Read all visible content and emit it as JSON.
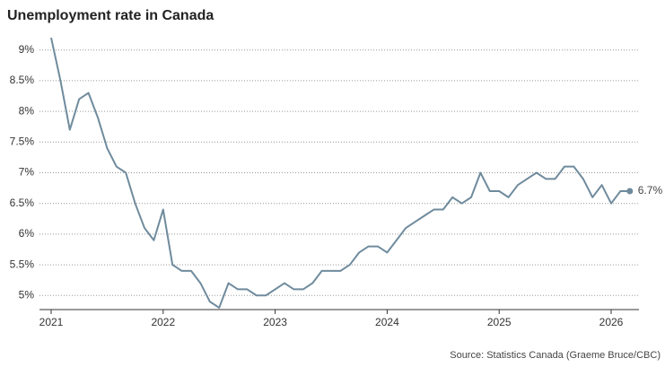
{
  "chart_data": {
    "type": "line",
    "title": "Unemployment rate in Canada",
    "source": "Source: Statistics Canada (Graeme Bruce/CBC)",
    "categories": [
      "2021",
      null,
      null,
      null,
      null,
      null,
      null,
      null,
      null,
      null,
      null,
      null,
      "2022",
      null,
      null,
      null,
      null,
      null,
      null,
      null,
      null,
      null,
      null,
      null,
      "2023",
      null,
      null,
      null,
      null,
      null,
      null,
      null,
      null,
      null,
      null,
      null,
      "2024",
      null,
      null,
      null,
      null,
      null,
      null,
      null,
      null,
      null,
      null,
      null,
      "2025",
      null,
      null,
      null,
      null,
      null,
      null,
      null,
      null,
      null,
      null,
      null,
      "2026",
      null,
      null
    ],
    "series": [
      {
        "name": "Unemployment rate",
        "color": "#6f8b9d",
        "values": [
          9.2,
          8.5,
          7.7,
          8.2,
          8.3,
          7.9,
          7.4,
          7.1,
          7.0,
          6.5,
          6.1,
          5.9,
          6.4,
          5.5,
          5.4,
          5.4,
          5.2,
          4.9,
          4.8,
          5.2,
          5.1,
          5.1,
          5.0,
          5.0,
          5.1,
          5.2,
          5.1,
          5.1,
          5.2,
          5.4,
          5.4,
          5.4,
          5.5,
          5.7,
          5.8,
          5.8,
          5.7,
          5.9,
          6.1,
          6.2,
          6.3,
          6.4,
          6.4,
          6.6,
          6.5,
          6.6,
          7.0,
          6.7,
          6.7,
          6.6,
          6.8,
          6.9,
          7.0,
          6.9,
          6.9,
          7.1,
          7.1,
          6.9,
          6.6,
          6.8,
          6.5,
          6.7,
          6.7
        ],
        "value_labels": [
          null,
          null,
          null,
          null,
          null,
          null,
          null,
          null,
          null,
          null,
          null,
          null,
          null,
          null,
          null,
          null,
          null,
          null,
          null,
          null,
          null,
          null,
          null,
          null,
          null,
          null,
          null,
          null,
          null,
          null,
          null,
          null,
          null,
          null,
          null,
          null,
          null,
          null,
          null,
          null,
          null,
          null,
          null,
          null,
          null,
          null,
          null,
          null,
          null,
          null,
          null,
          null,
          null,
          null,
          null,
          null,
          null,
          null,
          null,
          null,
          null,
          null,
          "6.7%"
        ]
      }
    ],
    "ylim": [
      4.77,
      9.23
    ],
    "yticks": [
      {
        "value": 5,
        "label": "5%"
      },
      {
        "value": 5.5,
        "label": "5.5%"
      },
      {
        "value": 6,
        "label": "6%"
      },
      {
        "value": 6.5,
        "label": "6.5%"
      },
      {
        "value": 7,
        "label": "7%"
      },
      {
        "value": 7.5,
        "label": "7.5%"
      },
      {
        "value": 8,
        "label": "8%"
      },
      {
        "value": 8.5,
        "label": "8.5%"
      },
      {
        "value": 9,
        "label": "9%"
      }
    ],
    "grid": true
  }
}
